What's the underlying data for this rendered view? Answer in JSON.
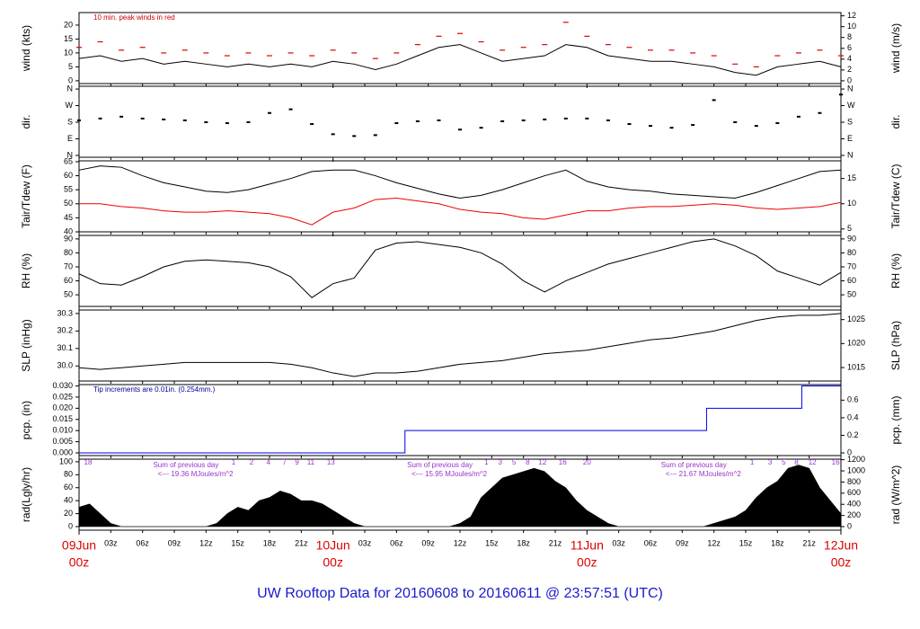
{
  "title": "UW Rooftop Data for 20160608  to  20160611 @ 23:57:51  (UTC)",
  "x_axis": {
    "xlim": [
      0,
      72
    ],
    "xticks": [
      {
        "value": 3,
        "label": "03z"
      },
      {
        "value": 6,
        "label": "06z"
      },
      {
        "value": 9,
        "label": "09z"
      },
      {
        "value": 12,
        "label": "12z"
      },
      {
        "value": 15,
        "label": "15z"
      },
      {
        "value": 18,
        "label": "18z"
      },
      {
        "value": 21,
        "label": "21z"
      },
      {
        "value": 27,
        "label": "03z"
      },
      {
        "value": 30,
        "label": "06z"
      },
      {
        "value": 33,
        "label": "09z"
      },
      {
        "value": 36,
        "label": "12z"
      },
      {
        "value": 39,
        "label": "15z"
      },
      {
        "value": 42,
        "label": "18z"
      },
      {
        "value": 45,
        "label": "21z"
      },
      {
        "value": 51,
        "label": "03z"
      },
      {
        "value": 54,
        "label": "06z"
      },
      {
        "value": 57,
        "label": "09z"
      },
      {
        "value": 60,
        "label": "12z"
      },
      {
        "value": 63,
        "label": "15z"
      },
      {
        "value": 66,
        "label": "18z"
      },
      {
        "value": 69,
        "label": "21z"
      }
    ],
    "day_ticks": [
      {
        "value": 0,
        "label": "09Jun",
        "hour": "00z"
      },
      {
        "value": 24,
        "label": "10Jun",
        "hour": "00z"
      },
      {
        "value": 48,
        "label": "11Jun",
        "hour": "00z"
      },
      {
        "value": 72,
        "label": "12Jun",
        "hour": "00z"
      }
    ]
  },
  "chart_data": [
    {
      "type": "line",
      "ylabel": "wind (kts)",
      "y2label": "wind (m/s)",
      "annotation": "10 min. peak winds in red",
      "annotation_color": "#cc0000",
      "ylim": [
        -1,
        24.5
      ],
      "yticks": [
        0,
        5,
        10,
        15,
        20
      ],
      "y2lim": [
        -0.51,
        12.6
      ],
      "y2ticks": [
        0,
        2,
        4,
        6,
        8,
        10,
        12
      ],
      "x": [
        0,
        2,
        4,
        6,
        8,
        10,
        12,
        14,
        16,
        18,
        20,
        22,
        24,
        26,
        28,
        30,
        32,
        34,
        36,
        38,
        40,
        42,
        44,
        46,
        48,
        50,
        52,
        54,
        56,
        58,
        60,
        62,
        64,
        66,
        68,
        70,
        72
      ],
      "series": [
        {
          "style": "line",
          "color": "#000000",
          "values": [
            8,
            9,
            7,
            8,
            6,
            7,
            6,
            5,
            6,
            5,
            6,
            5,
            7,
            6,
            4,
            6,
            9,
            12,
            13,
            10,
            7,
            8,
            9,
            13,
            12,
            9,
            8,
            7,
            7,
            6,
            5,
            3,
            2,
            5,
            6,
            7,
            5
          ]
        },
        {
          "style": "dash",
          "color": "#dd0000",
          "values": [
            12,
            14,
            11,
            12,
            10,
            11,
            10,
            9,
            10,
            9,
            10,
            9,
            11,
            10,
            8,
            10,
            13,
            16,
            17,
            14,
            11,
            12,
            13,
            21,
            16,
            13,
            12,
            11,
            11,
            10,
            9,
            6,
            5,
            9,
            10,
            11,
            9
          ]
        }
      ]
    },
    {
      "type": "scatter",
      "ylabel": "dir.",
      "y2label": "dir.",
      "ylim": [
        -10,
        375
      ],
      "yticks": [
        {
          "value": 0,
          "label": "N"
        },
        {
          "value": 90,
          "label": "E"
        },
        {
          "value": 180,
          "label": "S"
        },
        {
          "value": 270,
          "label": "W"
        },
        {
          "value": 360,
          "label": "N"
        }
      ],
      "x": [
        0,
        2,
        4,
        6,
        8,
        10,
        12,
        14,
        16,
        18,
        20,
        22,
        24,
        26,
        28,
        30,
        32,
        34,
        36,
        38,
        40,
        42,
        44,
        46,
        48,
        50,
        52,
        54,
        56,
        58,
        60,
        62,
        64,
        66,
        68,
        70,
        72
      ],
      "series": [
        {
          "style": "dots",
          "color": "#000000",
          "values": [
            190,
            200,
            210,
            200,
            195,
            190,
            180,
            175,
            180,
            230,
            250,
            170,
            115,
            105,
            110,
            175,
            185,
            190,
            140,
            150,
            185,
            190,
            195,
            200,
            200,
            190,
            170,
            160,
            150,
            165,
            300,
            180,
            160,
            175,
            210,
            230,
            330
          ]
        }
      ]
    },
    {
      "type": "line",
      "ylabel": "Tair/Tdew (F)",
      "y2label": "Tair/Tdew (C)",
      "ylim": [
        40,
        65.3
      ],
      "yticks": [
        40,
        45,
        50,
        55,
        60,
        65
      ],
      "y2lim": [
        4.44,
        18.5
      ],
      "y2ticks": [
        5,
        10,
        15
      ],
      "x": [
        0,
        2,
        4,
        6,
        8,
        10,
        12,
        14,
        16,
        18,
        20,
        22,
        24,
        26,
        28,
        30,
        32,
        34,
        36,
        38,
        40,
        42,
        44,
        46,
        48,
        50,
        52,
        54,
        56,
        58,
        60,
        62,
        64,
        66,
        68,
        70,
        72
      ],
      "series": [
        {
          "style": "line",
          "color": "#000000",
          "values": [
            62,
            63.5,
            63,
            60,
            57.5,
            56,
            54.5,
            54,
            55,
            57,
            59,
            61.5,
            62,
            62,
            60,
            57.5,
            55.5,
            53.5,
            52,
            53,
            55,
            57.5,
            60,
            62,
            58,
            56,
            55,
            54.5,
            53.5,
            53,
            52.5,
            52,
            54,
            56.5,
            59,
            61.5,
            62
          ]
        },
        {
          "style": "line",
          "color": "#ee0000",
          "values": [
            50,
            50,
            49,
            48.5,
            47.5,
            47,
            47,
            47.5,
            47,
            46.5,
            45,
            42.5,
            47,
            48.5,
            51.5,
            52,
            51,
            50,
            48,
            47,
            46.5,
            45,
            44.5,
            46,
            47.5,
            47.5,
            48.5,
            49,
            49,
            49.5,
            50,
            49.5,
            48.5,
            48,
            48.5,
            49,
            50.5
          ]
        }
      ]
    },
    {
      "type": "line",
      "ylabel": "RH (%)",
      "y2label": "RH (%)",
      "ylim": [
        41.7,
        92.5
      ],
      "yticks": [
        50,
        60,
        70,
        80,
        90
      ],
      "x": [
        0,
        2,
        4,
        6,
        8,
        10,
        12,
        14,
        16,
        18,
        20,
        22,
        24,
        26,
        28,
        30,
        32,
        34,
        36,
        38,
        40,
        42,
        44,
        46,
        48,
        50,
        52,
        54,
        56,
        58,
        60,
        62,
        64,
        66,
        68,
        70,
        72
      ],
      "series": [
        {
          "style": "line",
          "color": "#000000",
          "values": [
            65,
            58,
            57,
            63,
            70,
            74,
            75,
            74,
            73,
            70,
            63,
            48,
            58,
            62,
            82,
            87,
            88,
            86,
            84,
            80,
            72,
            60,
            52,
            60,
            66,
            72,
            76,
            80,
            84,
            88,
            90,
            85,
            78,
            67,
            62,
            57,
            66
          ]
        }
      ]
    },
    {
      "type": "line",
      "ylabel": "SLP (inHg)",
      "y2label": "SLP (hPa)",
      "ylim": [
        29.914,
        30.32
      ],
      "yticks": [
        {
          "value": 30,
          "label": "30.0"
        },
        30.1,
        30.2,
        30.3
      ],
      "y2lim": [
        1012.2,
        1027
      ],
      "y2ticks": [
        1015,
        1020,
        1025
      ],
      "x": [
        0,
        2,
        4,
        6,
        8,
        10,
        12,
        14,
        16,
        18,
        20,
        22,
        24,
        26,
        28,
        30,
        32,
        34,
        36,
        38,
        40,
        42,
        44,
        46,
        48,
        50,
        52,
        54,
        56,
        58,
        60,
        62,
        64,
        66,
        68,
        70,
        72
      ],
      "series": [
        {
          "style": "line",
          "color": "#000000",
          "values": [
            29.99,
            29.98,
            29.99,
            30.0,
            30.01,
            30.02,
            30.02,
            30.02,
            30.02,
            30.02,
            30.01,
            29.99,
            29.96,
            29.94,
            29.96,
            29.96,
            29.97,
            29.99,
            30.01,
            30.02,
            30.03,
            30.05,
            30.07,
            30.08,
            30.09,
            30.11,
            30.13,
            30.15,
            30.16,
            30.18,
            30.2,
            30.23,
            30.26,
            30.28,
            30.29,
            30.29,
            30.3
          ]
        }
      ]
    },
    {
      "type": "step",
      "ylabel": "pcp. (in)",
      "y2label": "pcp. (mm)",
      "annotation": "Tip increments are 0.01in. (0.254mm.)",
      "annotation_color": "#000099",
      "ylim": [
        -0.0012,
        0.0306
      ],
      "yticks": [
        {
          "value": 0,
          "label": "0.000"
        },
        0.005,
        {
          "value": 0.01,
          "label": "0.010"
        },
        0.015,
        {
          "value": 0.02,
          "label": "0.020"
        },
        0.025,
        {
          "value": 0.03,
          "label": "0.030"
        }
      ],
      "y2lim": [
        -0.03,
        0.777
      ],
      "y2ticks": [
        0,
        0.2,
        0.4,
        0.6
      ],
      "x": [
        0,
        30.8,
        59.3,
        68.3,
        72
      ],
      "series": [
        {
          "style": "step",
          "color": "#0000ee",
          "values": [
            0,
            0.01,
            0.02,
            0.03,
            0.03
          ]
        }
      ]
    },
    {
      "type": "area",
      "ylabel": "rad(Lgly/hr)",
      "y2label": "rad (W/m^2)",
      "ylim": [
        -5.5,
        104
      ],
      "yticks": [
        0,
        20,
        40,
        60,
        80,
        100
      ],
      "y2lim": [
        -64,
        1210
      ],
      "y2ticks": [
        0,
        200,
        400,
        600,
        800,
        1000,
        1200
      ],
      "annotations": [
        {
          "x": 7,
          "lines": [
            "Sum of previous day",
            "<--- 19.36 MJoules/m^2"
          ]
        },
        {
          "x": 31,
          "lines": [
            "Sum of previous day",
            "<--- 15.95 MJoules/m^2"
          ]
        },
        {
          "x": 55,
          "lines": [
            "Sum of previous day",
            "<--- 21.67 MJoules/m^2"
          ]
        }
      ],
      "annotation_color": "#9933cc",
      "hour_marks": [
        {
          "x": 0.85,
          "label": "18"
        },
        {
          "x": 14.6,
          "label": "1"
        },
        {
          "x": 16.3,
          "label": "2"
        },
        {
          "x": 17.9,
          "label": "4"
        },
        {
          "x": 19.4,
          "label": "7"
        },
        {
          "x": 20.6,
          "label": "9"
        },
        {
          "x": 21.9,
          "label": "11"
        },
        {
          "x": 23.8,
          "label": "13"
        },
        {
          "x": 38.5,
          "label": "1"
        },
        {
          "x": 39.8,
          "label": "3"
        },
        {
          "x": 41.1,
          "label": "5"
        },
        {
          "x": 42.4,
          "label": "8"
        },
        {
          "x": 43.8,
          "label": "12"
        },
        {
          "x": 45.7,
          "label": "16"
        },
        {
          "x": 48,
          "label": "20"
        },
        {
          "x": 63.6,
          "label": "1"
        },
        {
          "x": 65.3,
          "label": "3"
        },
        {
          "x": 66.6,
          "label": "5"
        },
        {
          "x": 67.8,
          "label": "8"
        },
        {
          "x": 69.3,
          "label": "12"
        },
        {
          "x": 71.5,
          "label": "16"
        }
      ],
      "x": [
        0,
        1,
        2,
        3,
        4,
        5,
        6,
        7,
        8,
        9,
        10,
        11,
        12,
        13,
        14,
        15,
        16,
        17,
        18,
        19,
        20,
        21,
        22,
        23,
        24,
        25,
        26,
        27,
        28,
        29,
        30,
        31,
        32,
        33,
        34,
        35,
        36,
        37,
        38,
        39,
        40,
        41,
        42,
        43,
        44,
        45,
        46,
        47,
        48,
        49,
        50,
        51,
        52,
        53,
        54,
        55,
        56,
        57,
        58,
        59,
        60,
        61,
        62,
        63,
        64,
        65,
        66,
        67,
        68,
        69,
        70,
        71,
        72
      ],
      "series": [
        {
          "style": "area",
          "color": "#000000",
          "values": [
            30,
            35,
            20,
            5,
            0,
            0,
            0,
            0,
            0,
            0,
            0,
            0,
            0,
            5,
            20,
            30,
            25,
            40,
            45,
            55,
            50,
            40,
            40,
            35,
            25,
            15,
            5,
            0,
            0,
            0,
            0,
            0,
            0,
            0,
            0,
            0,
            5,
            15,
            45,
            60,
            75,
            80,
            85,
            90,
            85,
            70,
            60,
            40,
            25,
            15,
            5,
            0,
            0,
            0,
            0,
            0,
            0,
            0,
            0,
            0,
            5,
            10,
            15,
            25,
            45,
            60,
            70,
            90,
            95,
            90,
            60,
            40,
            20
          ]
        }
      ]
    }
  ]
}
